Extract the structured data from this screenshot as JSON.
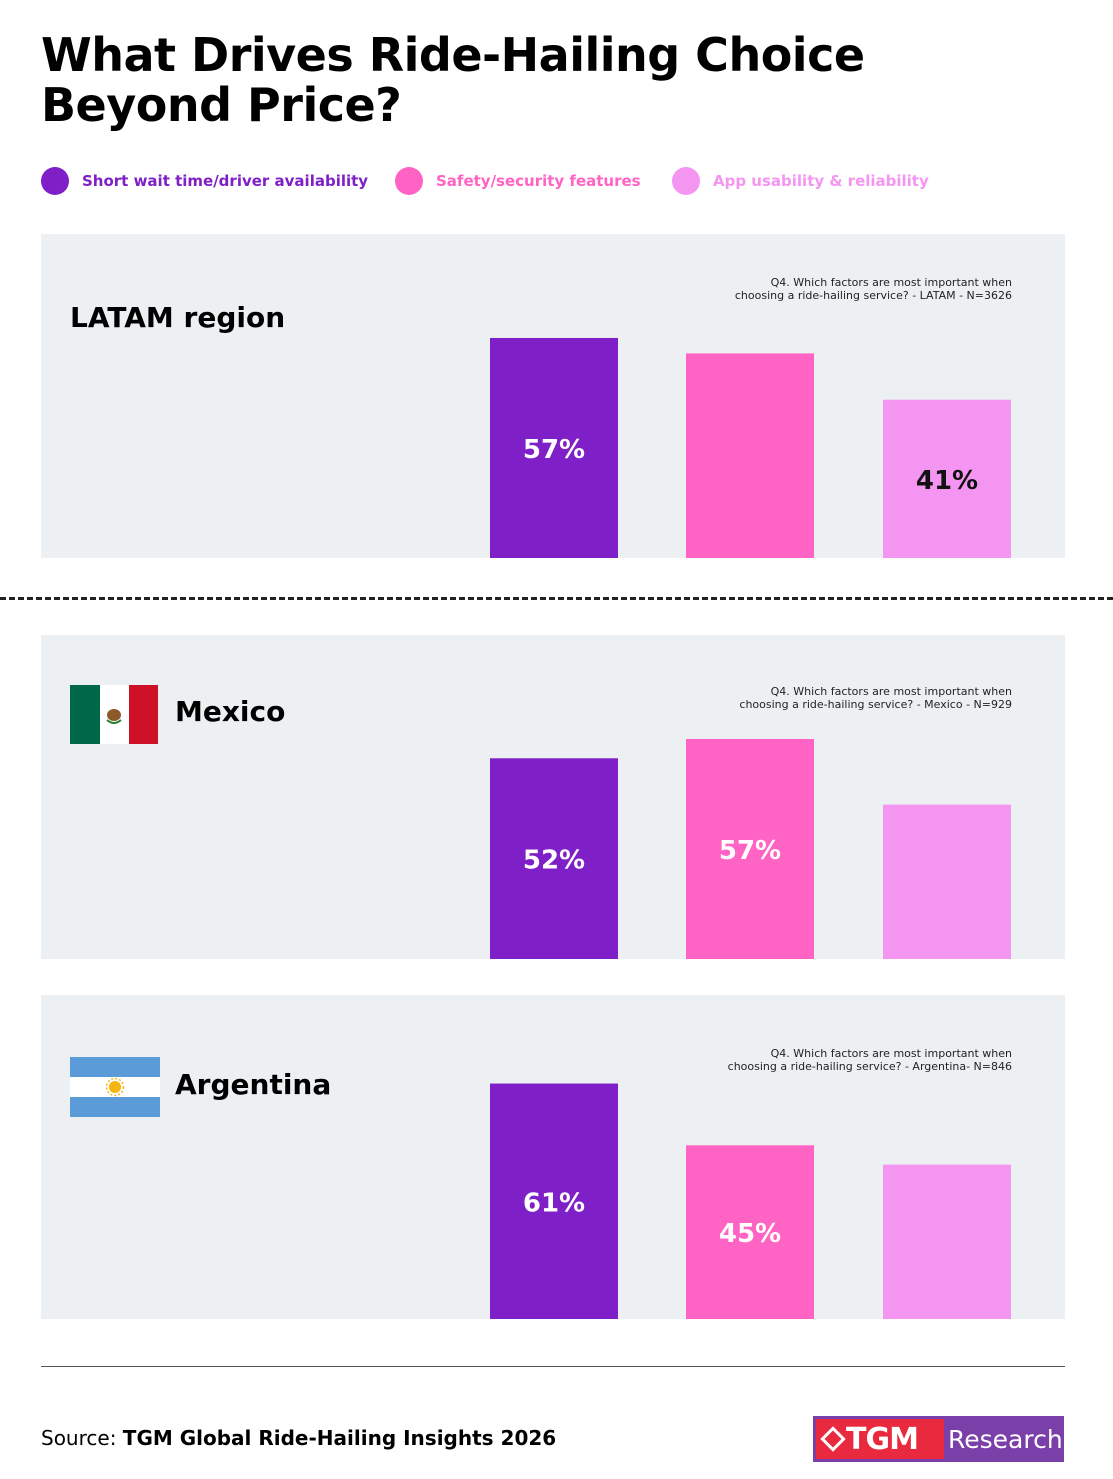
{
  "title": "What Drives Ride-Hailing Choice Beyond Price?",
  "legend": [
    {
      "label": "Short wait time/driver availability",
      "color": "#7e1fc8"
    },
    {
      "label": "Safety/security features",
      "color": "#ff63c4"
    },
    {
      "label": "App usability & reliability",
      "color": "#f595f2"
    }
  ],
  "chart_data": [
    {
      "type": "bar",
      "title": "LATAM region",
      "note_line1": "Q4. Which factors are most important when",
      "note_line2": "choosing a ride-hailing service? - LATAM - N=3626",
      "categories": [
        "Short wait time/driver availability",
        "Safety/security features",
        "App usability & reliability"
      ],
      "values": [
        57,
        53,
        41
      ],
      "labels": [
        "57%",
        "",
        "41%"
      ],
      "ylim": [
        0,
        60
      ]
    },
    {
      "type": "bar",
      "title": "Mexico",
      "flag": "mexico-flag",
      "note_line1": "Q4. Which factors are most important when",
      "note_line2": "choosing a ride-hailing service? - Mexico - N=929",
      "categories": [
        "Short wait time/driver availability",
        "Safety/security features",
        "App usability & reliability"
      ],
      "values": [
        52,
        57,
        40
      ],
      "labels": [
        "52%",
        "57%",
        ""
      ],
      "ylim": [
        0,
        60
      ]
    },
    {
      "type": "bar",
      "title": "Argentina",
      "flag": "argentina-flag",
      "note_line1": "Q4. Which factors are most important when",
      "note_line2": "choosing a ride-hailing service? - Argentina- N=846",
      "categories": [
        "Short wait time/driver availability",
        "Safety/security features",
        "App usability & reliability"
      ],
      "values": [
        61,
        45,
        40
      ],
      "labels": [
        "61%",
        "45%",
        ""
      ],
      "ylim": [
        0,
        60
      ]
    }
  ],
  "label_colors": [
    "#ffffff",
    "#ffffff",
    "#111111"
  ],
  "source": {
    "prefix": "Source:",
    "name": "TGM Global Ride-Hailing Insights 2026"
  },
  "logo": {
    "brand": "TGM",
    "suffix": "Research",
    "icon": "diamond-icon"
  }
}
